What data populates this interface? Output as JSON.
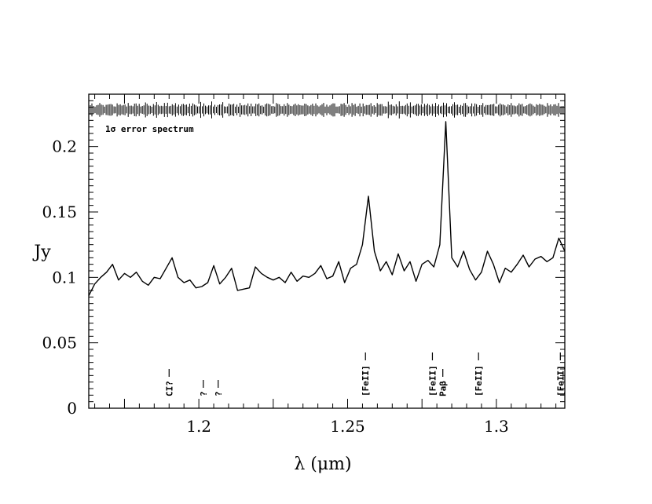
{
  "chart_data": {
    "type": "line",
    "title": "",
    "xlabel": "λ (μm)",
    "ylabel": "Jy",
    "xlim": [
      1.163,
      1.323
    ],
    "ylim": [
      0,
      0.24
    ],
    "x_ticks": [
      {
        "value": 1.2,
        "label": "1.2"
      },
      {
        "value": 1.25,
        "label": "1.25"
      },
      {
        "value": 1.3,
        "label": "1.3"
      }
    ],
    "y_ticks": [
      {
        "value": 0,
        "label": "0"
      },
      {
        "value": 0.05,
        "label": "0.05"
      },
      {
        "value": 0.1,
        "label": "0.1"
      },
      {
        "value": 0.15,
        "label": "0.15"
      },
      {
        "value": 0.2,
        "label": "0.2"
      }
    ],
    "grid": false,
    "series": [
      {
        "x": [
          1.163,
          1.165,
          1.167,
          1.169,
          1.171,
          1.173,
          1.175,
          1.177,
          1.179,
          1.181,
          1.183,
          1.185,
          1.187,
          1.189,
          1.191,
          1.193,
          1.195,
          1.197,
          1.199,
          1.201,
          1.203,
          1.205,
          1.207,
          1.209,
          1.211,
          1.213,
          1.215,
          1.217,
          1.219,
          1.221,
          1.223,
          1.225,
          1.227,
          1.229,
          1.231,
          1.233,
          1.235,
          1.237,
          1.239,
          1.241,
          1.243,
          1.245,
          1.247,
          1.249,
          1.251,
          1.253,
          1.255,
          1.257,
          1.259,
          1.261,
          1.263,
          1.265,
          1.267,
          1.269,
          1.271,
          1.273,
          1.275,
          1.277,
          1.279,
          1.281,
          1.283,
          1.285,
          1.287,
          1.289,
          1.291,
          1.293,
          1.295,
          1.297,
          1.299,
          1.301,
          1.303,
          1.305,
          1.307,
          1.309,
          1.311,
          1.313,
          1.315,
          1.317,
          1.319,
          1.321,
          1.323
        ],
        "y": [
          0.086,
          0.095,
          0.1,
          0.104,
          0.11,
          0.098,
          0.103,
          0.1,
          0.104,
          0.097,
          0.094,
          0.1,
          0.099,
          0.107,
          0.115,
          0.1,
          0.096,
          0.098,
          0.092,
          0.093,
          0.096,
          0.109,
          0.095,
          0.1,
          0.107,
          0.09,
          0.091,
          0.092,
          0.108,
          0.103,
          0.1,
          0.098,
          0.1,
          0.096,
          0.104,
          0.097,
          0.101,
          0.1,
          0.103,
          0.109,
          0.099,
          0.101,
          0.112,
          0.096,
          0.107,
          0.11,
          0.125,
          0.162,
          0.12,
          0.105,
          0.112,
          0.102,
          0.118,
          0.105,
          0.112,
          0.097,
          0.11,
          0.113,
          0.108,
          0.125,
          0.219,
          0.115,
          0.108,
          0.12,
          0.106,
          0.098,
          0.104,
          0.12,
          0.11,
          0.096,
          0.107,
          0.104,
          0.11,
          0.117,
          0.108,
          0.114,
          0.116,
          0.112,
          0.115,
          0.13,
          0.12
        ]
      }
    ],
    "annotations": [
      {
        "text": "1σ error spectrum"
      }
    ],
    "line_labels": [
      {
        "x": 1.19,
        "text": "CI?"
      },
      {
        "x": 1.2015,
        "text": "?"
      },
      {
        "x": 1.2065,
        "text": "?"
      },
      {
        "x": 1.256,
        "text": "[FeII]"
      },
      {
        "x": 1.2785,
        "text": "[FeII]"
      },
      {
        "x": 1.282,
        "text": "Paβ"
      },
      {
        "x": 1.294,
        "text": "[FeII]"
      },
      {
        "x": 1.3215,
        "text": "[FeII]"
      }
    ]
  }
}
